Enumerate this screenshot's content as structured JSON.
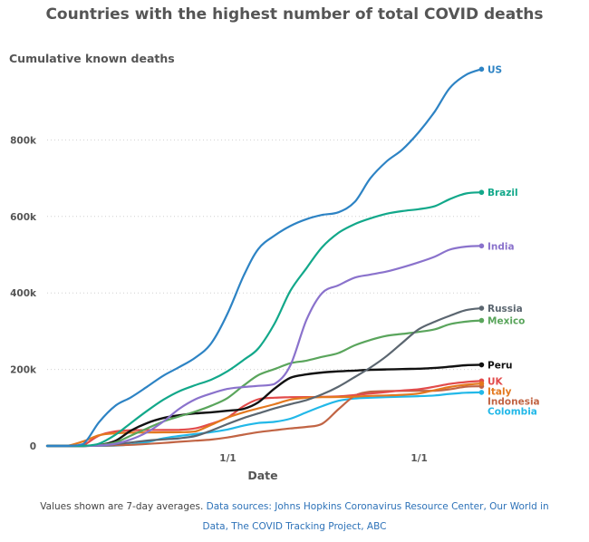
{
  "chart_data": {
    "type": "line",
    "title": "Countries with the highest number of total COVID deaths",
    "ylabel": "Cumulative known deaths",
    "xlabel": "Date",
    "ylim": [
      0,
      1000000
    ],
    "yticks": [
      0,
      200000,
      400000,
      600000,
      800000
    ],
    "ytick_labels": [
      "0",
      "200k",
      "400k",
      "600k",
      "800k"
    ],
    "xlim": [
      "2020-01-22",
      "2022-05-01"
    ],
    "xticks": [
      "2021-01-01",
      "2022-01-01"
    ],
    "xtick_labels": [
      "1/1",
      "1/1"
    ],
    "grid": "horizontal dotted",
    "series": [
      {
        "name": "US",
        "color": "#2d83c4",
        "x": [
          "2020-02-29",
          "2020-03-31",
          "2020-04-30",
          "2020-05-31",
          "2020-06-30",
          "2020-07-31",
          "2020-08-31",
          "2020-09-30",
          "2020-10-31",
          "2020-11-30",
          "2020-12-31",
          "2021-01-31",
          "2021-02-28",
          "2021-03-31",
          "2021-04-30",
          "2021-05-31",
          "2021-06-30",
          "2021-07-31",
          "2021-08-31",
          "2021-09-30",
          "2021-10-31",
          "2021-11-30",
          "2021-12-31",
          "2022-01-31",
          "2022-02-28",
          "2022-03-31",
          "2022-04-30"
        ],
        "y": [
          1,
          5000,
          62000,
          105000,
          127000,
          155000,
          184000,
          206000,
          231000,
          268000,
          345000,
          445000,
          515000,
          550000,
          575000,
          593000,
          604000,
          611000,
          638000,
          700000,
          744000,
          775000,
          820000,
          875000,
          935000,
          970000,
          985000
        ]
      },
      {
        "name": "Brazil",
        "color": "#12a88a",
        "x": [
          "2020-03-31",
          "2020-04-30",
          "2020-05-31",
          "2020-06-30",
          "2020-07-31",
          "2020-08-31",
          "2020-09-30",
          "2020-10-31",
          "2020-11-30",
          "2020-12-31",
          "2021-01-31",
          "2021-02-28",
          "2021-03-31",
          "2021-04-30",
          "2021-05-31",
          "2021-06-30",
          "2021-07-31",
          "2021-08-31",
          "2021-09-30",
          "2021-10-31",
          "2021-11-30",
          "2021-12-31",
          "2022-01-31",
          "2022-02-28",
          "2022-03-31",
          "2022-04-30"
        ],
        "y": [
          100,
          6000,
          29000,
          60000,
          92000,
          121000,
          143000,
          159000,
          173000,
          195000,
          225000,
          255000,
          320000,
          405000,
          465000,
          520000,
          557000,
          580000,
          595000,
          607000,
          614000,
          619000,
          627000,
          645000,
          660000,
          663000
        ]
      },
      {
        "name": "India",
        "color": "#8a72cc",
        "x": [
          "2020-03-31",
          "2020-04-30",
          "2020-05-31",
          "2020-06-30",
          "2020-07-31",
          "2020-08-31",
          "2020-09-30",
          "2020-10-31",
          "2020-11-30",
          "2020-12-31",
          "2021-01-31",
          "2021-02-28",
          "2021-03-31",
          "2021-04-30",
          "2021-05-31",
          "2021-06-30",
          "2021-07-31",
          "2021-08-31",
          "2021-09-30",
          "2021-10-31",
          "2021-11-30",
          "2021-12-31",
          "2022-01-31",
          "2022-02-28",
          "2022-03-31",
          "2022-04-30"
        ],
        "y": [
          50,
          1100,
          5400,
          17000,
          36000,
          64000,
          97000,
          122000,
          137000,
          149000,
          154000,
          157000,
          162000,
          210000,
          330000,
          400000,
          420000,
          440000,
          448000,
          456000,
          467000,
          480000,
          495000,
          513000,
          521000,
          523000
        ]
      },
      {
        "name": "Russia",
        "color": "#5b6670",
        "x": [
          "2020-03-31",
          "2020-04-30",
          "2020-05-31",
          "2020-06-30",
          "2020-07-31",
          "2020-08-31",
          "2020-09-30",
          "2020-10-31",
          "2020-11-30",
          "2020-12-31",
          "2021-01-31",
          "2021-02-28",
          "2021-03-31",
          "2021-04-30",
          "2021-05-31",
          "2021-06-30",
          "2021-07-31",
          "2021-08-31",
          "2021-09-30",
          "2021-10-31",
          "2021-11-30",
          "2021-12-31",
          "2022-01-31",
          "2022-02-28",
          "2022-03-31",
          "2022-04-30"
        ],
        "y": [
          17,
          1000,
          4500,
          9000,
          14000,
          17000,
          20000,
          26000,
          40000,
          57000,
          73000,
          85000,
          98000,
          109000,
          120000,
          135000,
          155000,
          180000,
          205000,
          235000,
          270000,
          305000,
          325000,
          340000,
          355000,
          360000
        ]
      },
      {
        "name": "Mexico",
        "color": "#5aa55c",
        "x": [
          "2020-03-31",
          "2020-04-30",
          "2020-05-31",
          "2020-06-30",
          "2020-07-31",
          "2020-08-31",
          "2020-09-30",
          "2020-10-31",
          "2020-11-30",
          "2020-12-31",
          "2021-01-31",
          "2021-02-28",
          "2021-03-31",
          "2021-04-30",
          "2021-05-31",
          "2021-06-30",
          "2021-07-31",
          "2021-08-31",
          "2021-09-30",
          "2021-10-31",
          "2021-11-30",
          "2021-12-31",
          "2022-01-31",
          "2022-02-28",
          "2022-03-31",
          "2022-04-30"
        ],
        "y": [
          30,
          2000,
          9000,
          27000,
          46000,
          64000,
          77000,
          90000,
          105000,
          125000,
          158000,
          185000,
          201000,
          216000,
          223000,
          233000,
          243000,
          263000,
          277000,
          288000,
          293000,
          298000,
          305000,
          318000,
          325000,
          328000
        ]
      },
      {
        "name": "Peru",
        "color": "#111111",
        "x": [
          "2020-03-31",
          "2020-04-30",
          "2020-05-31",
          "2020-06-30",
          "2020-07-31",
          "2020-08-31",
          "2020-09-30",
          "2020-10-31",
          "2020-11-30",
          "2020-12-31",
          "2021-01-31",
          "2021-02-28",
          "2021-03-31",
          "2021-04-30",
          "2021-05-31",
          "2021-06-30",
          "2021-07-31",
          "2021-08-31",
          "2021-09-30",
          "2021-10-31",
          "2021-11-30",
          "2021-12-31",
          "2022-01-31",
          "2022-02-28",
          "2022-03-31",
          "2022-04-30"
        ],
        "y": [
          20,
          2000,
          13000,
          40000,
          60000,
          73000,
          80000,
          85000,
          88000,
          92000,
          97000,
          114000,
          150000,
          178000,
          187000,
          192000,
          195000,
          197000,
          199000,
          200000,
          201000,
          202000,
          204000,
          207000,
          211000,
          212000
        ]
      },
      {
        "name": "Italy",
        "color": "#e3781e",
        "x": [
          "2020-02-29",
          "2020-03-31",
          "2020-04-30",
          "2020-05-31",
          "2020-06-30",
          "2020-07-31",
          "2020-08-31",
          "2020-09-30",
          "2020-10-31",
          "2020-11-30",
          "2020-12-31",
          "2021-01-31",
          "2021-02-28",
          "2021-03-31",
          "2021-04-30",
          "2021-05-31",
          "2021-06-30",
          "2021-07-31",
          "2021-08-31",
          "2021-09-30",
          "2021-10-31",
          "2021-11-30",
          "2021-12-31",
          "2022-01-31",
          "2022-02-28",
          "2022-03-31",
          "2022-04-30"
        ],
        "y": [
          30,
          12000,
          28000,
          33000,
          34700,
          35100,
          35500,
          35900,
          38000,
          55000,
          74000,
          88000,
          98000,
          109000,
          121000,
          126000,
          127500,
          128000,
          129000,
          130800,
          132000,
          133700,
          137000,
          146000,
          154000,
          160000,
          163000
        ]
      },
      {
        "name": "UK",
        "color": "#e24b4b",
        "x": [
          "2020-03-31",
          "2020-04-30",
          "2020-05-31",
          "2020-06-30",
          "2020-07-31",
          "2020-08-31",
          "2020-09-30",
          "2020-10-31",
          "2020-11-30",
          "2020-12-31",
          "2021-01-31",
          "2021-02-28",
          "2021-03-31",
          "2021-04-30",
          "2021-05-31",
          "2021-06-30",
          "2021-07-31",
          "2021-08-31",
          "2021-09-30",
          "2021-10-31",
          "2021-11-30",
          "2021-12-31",
          "2022-01-31",
          "2022-02-28",
          "2022-03-31",
          "2022-04-30"
        ],
        "y": [
          2000,
          27000,
          38000,
          41000,
          41500,
          41600,
          42000,
          46000,
          58000,
          74000,
          104000,
          122000,
          126000,
          127400,
          127800,
          128100,
          129500,
          133000,
          137000,
          141000,
          145000,
          148000,
          155000,
          162000,
          167000,
          170000
        ]
      },
      {
        "name": "Indonesia",
        "color": "#c16444",
        "x": [
          "2020-03-31",
          "2020-04-30",
          "2020-05-31",
          "2020-06-30",
          "2020-07-31",
          "2020-08-31",
          "2020-09-30",
          "2020-10-31",
          "2020-11-30",
          "2020-12-31",
          "2021-01-31",
          "2021-02-28",
          "2021-03-31",
          "2021-04-30",
          "2021-05-31",
          "2021-06-30",
          "2021-07-31",
          "2021-08-31",
          "2021-09-30",
          "2021-10-31",
          "2021-11-30",
          "2021-12-31",
          "2022-01-31",
          "2022-02-28",
          "2022-03-31",
          "2022-04-30"
        ],
        "y": [
          100,
          800,
          1600,
          2800,
          5200,
          7800,
          10800,
          13800,
          16600,
          22000,
          29700,
          36000,
          41000,
          45800,
          49800,
          58000,
          96000,
          131000,
          142000,
          143400,
          143800,
          144000,
          144200,
          148000,
          155000,
          156000
        ]
      },
      {
        "name": "Colombia",
        "color": "#22b8e8",
        "x": [
          "2020-03-31",
          "2020-04-30",
          "2020-05-31",
          "2020-06-30",
          "2020-07-31",
          "2020-08-31",
          "2020-09-30",
          "2020-10-31",
          "2020-11-30",
          "2020-12-31",
          "2021-01-31",
          "2021-02-28",
          "2021-03-31",
          "2021-04-30",
          "2021-05-31",
          "2021-06-30",
          "2021-07-31",
          "2021-08-31",
          "2021-09-30",
          "2021-10-31",
          "2021-11-30",
          "2021-12-31",
          "2022-01-31",
          "2022-02-28",
          "2022-03-31",
          "2022-04-30"
        ],
        "y": [
          10,
          300,
          900,
          4000,
          10000,
          20000,
          26000,
          31000,
          36000,
          43000,
          53000,
          60000,
          63000,
          71000,
          88000,
          104000,
          118000,
          124000,
          126000,
          127500,
          128800,
          130000,
          132000,
          136000,
          139000,
          140000
        ]
      }
    ]
  },
  "footer": {
    "note": "Values shown are 7-day averages.",
    "sources_part1": "Data sources: Johns Hopkins Coronavirus Resource Center, Our World in",
    "sources_part2": "Data, The COVID Tracking Project, ABC"
  }
}
